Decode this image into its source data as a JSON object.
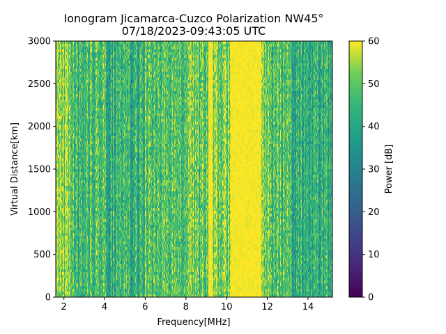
{
  "chart_data": {
    "type": "heatmap",
    "title": "Ionogram Jicamarca-Cuzco Polarization NW45°",
    "subtitle": "07/18/2023-09:43:05 UTC",
    "xlabel": "Frequency[MHz]",
    "ylabel": "Virtual Distance[km]",
    "xlim": [
      1.6,
      15.2
    ],
    "ylim": [
      0,
      3000
    ],
    "xticks": [
      2,
      4,
      6,
      8,
      10,
      12,
      14
    ],
    "yticks": [
      0,
      500,
      1000,
      1500,
      2000,
      2500,
      3000
    ],
    "colorbar": {
      "label": "Power [dB]",
      "range": [
        0,
        60
      ],
      "ticks": [
        0,
        10,
        20,
        30,
        40,
        50,
        60
      ],
      "colormap": "viridis"
    },
    "bands": [
      {
        "from": 1.6,
        "to": 2.4,
        "level_db": 52
      },
      {
        "from": 2.4,
        "to": 4.0,
        "level_db": 47
      },
      {
        "from": 4.0,
        "to": 6.0,
        "level_db": 43
      },
      {
        "from": 6.0,
        "to": 8.0,
        "level_db": 48
      },
      {
        "from": 8.0,
        "to": 9.1,
        "level_db": 49
      },
      {
        "from": 9.1,
        "to": 9.3,
        "level_db": 60
      },
      {
        "from": 9.3,
        "to": 10.2,
        "level_db": 53
      },
      {
        "from": 10.2,
        "to": 11.7,
        "level_db": 60
      },
      {
        "from": 11.7,
        "to": 12.2,
        "level_db": 55
      },
      {
        "from": 12.2,
        "to": 13.2,
        "level_db": 47
      },
      {
        "from": 13.2,
        "to": 15.2,
        "level_db": 42
      }
    ],
    "grid": false
  }
}
